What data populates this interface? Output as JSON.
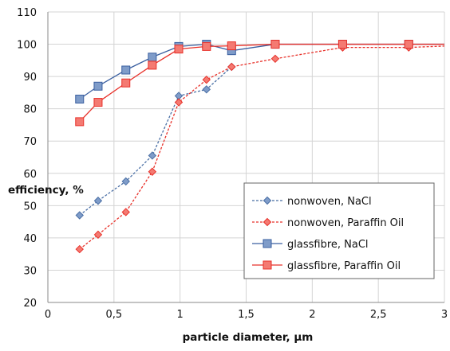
{
  "chart_data": {
    "type": "line",
    "xlabel": "particle diameter, µm",
    "ylabel": "efficiency, %",
    "xlim": [
      0,
      3
    ],
    "ylim": [
      20,
      110
    ],
    "xticks": [
      0,
      0.5,
      1,
      1.5,
      2,
      2.5,
      3
    ],
    "xtick_labels": [
      "0",
      "0,5",
      "1",
      "1,5",
      "2",
      "2,5",
      "3"
    ],
    "yticks": [
      20,
      30,
      40,
      50,
      60,
      70,
      80,
      90,
      100,
      110
    ],
    "ytick_labels": [
      "20",
      "30",
      "40",
      "50",
      "60",
      "70",
      "80",
      "90",
      "100",
      "110"
    ],
    "grid": true,
    "legend_position": "bottom-right",
    "series": [
      {
        "name": "nonwoven, NaCl",
        "color": "#4a6fa5",
        "line_style": "dashed",
        "marker": "diamond",
        "x": [
          0.24,
          0.38,
          0.59,
          0.79,
          0.99,
          1.2,
          1.39
        ],
        "y": [
          47,
          51.5,
          57.5,
          65.5,
          84,
          86,
          93
        ]
      },
      {
        "name": "nonwoven, Paraffin Oil",
        "color": "#e8312a",
        "line_style": "dashed",
        "marker": "diamond",
        "x": [
          0.24,
          0.38,
          0.59,
          0.79,
          0.99,
          1.2,
          1.39,
          1.72,
          2.23,
          2.73,
          3.05
        ],
        "y": [
          36.5,
          41,
          48,
          60.5,
          82,
          89,
          93,
          95.5,
          99,
          99,
          99.5
        ]
      },
      {
        "name": "glassfibre, NaCl",
        "color": "#3a5fa0",
        "line_style": "solid",
        "marker": "square",
        "x": [
          0.24,
          0.38,
          0.59,
          0.79,
          0.99,
          1.2,
          1.39,
          1.72,
          2.23,
          2.73,
          3.05
        ],
        "y": [
          83,
          87,
          92,
          96,
          99.3,
          100,
          98,
          100,
          100,
          100,
          100
        ]
      },
      {
        "name": "glassfibre, Paraffin Oil",
        "color": "#e8312a",
        "line_style": "solid",
        "marker": "square",
        "x": [
          0.24,
          0.38,
          0.59,
          0.79,
          0.99,
          1.2,
          1.39,
          1.72,
          2.23,
          2.73,
          3.05
        ],
        "y": [
          76,
          82,
          88,
          93.5,
          98.5,
          99.3,
          99.5,
          100,
          100,
          100,
          100
        ]
      }
    ]
  }
}
